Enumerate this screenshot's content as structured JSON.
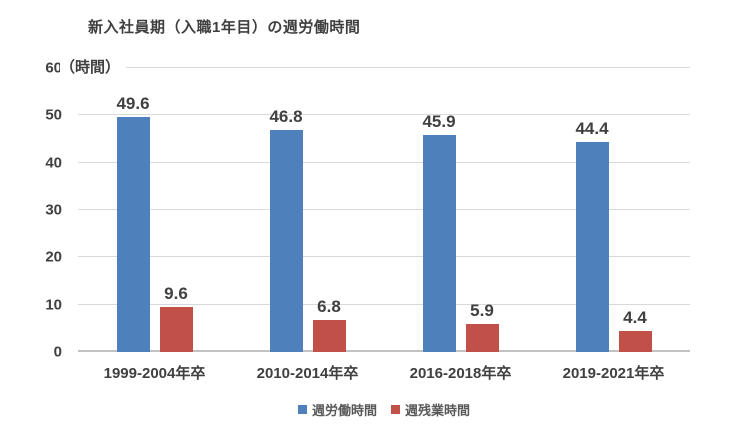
{
  "chart_data": {
    "type": "bar",
    "title": "新入社員期（入職1年目）の週労働時間",
    "ylabel": "（時間）",
    "categories": [
      "1999-2004年卒",
      "2010-2014年卒",
      "2016-2018年卒",
      "2019-2021年卒"
    ],
    "series": [
      {
        "name": "週労働時間",
        "color": "#4E80BC",
        "values": [
          49.6,
          46.8,
          45.9,
          44.4
        ]
      },
      {
        "name": "週残業時間",
        "color": "#C05048",
        "values": [
          9.6,
          6.8,
          5.9,
          4.4
        ]
      }
    ],
    "ylim": [
      0,
      60
    ],
    "yticks": [
      0,
      10,
      20,
      30,
      40,
      50,
      60
    ],
    "grid": true,
    "legend_position": "bottom",
    "value_labels": true,
    "text_color": "#404040",
    "gridline_color": "#d9d9d9"
  }
}
